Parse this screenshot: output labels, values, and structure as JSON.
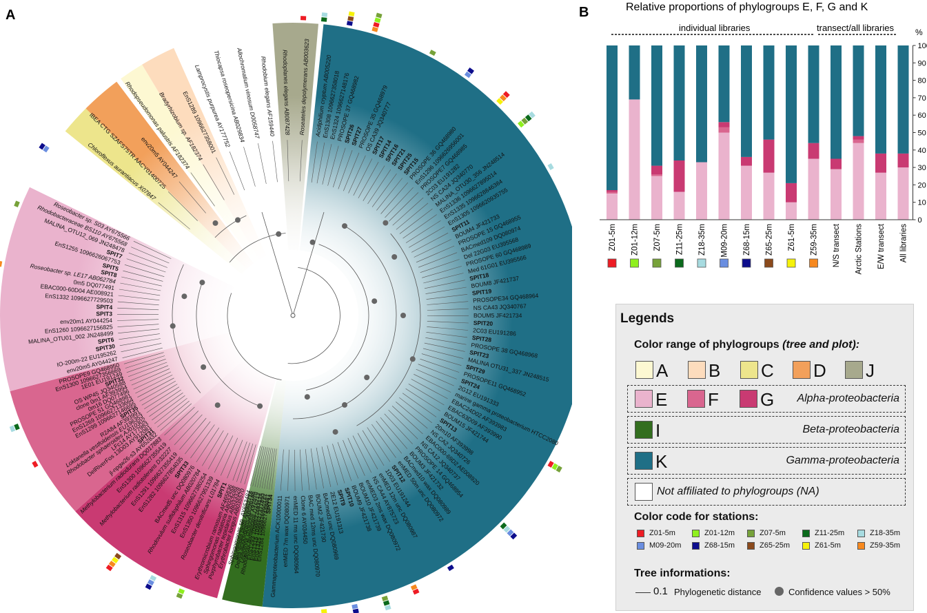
{
  "panel_labels": {
    "a": "A",
    "b": "B"
  },
  "colors": {
    "A": "#fdf8d2",
    "B": "#fddcbd",
    "C": "#ede58c",
    "D": "#f2a05b",
    "J": "#a7a98d",
    "E": "#eab3cd",
    "F": "#d9668f",
    "G": "#c93a72",
    "I": "#336e1f",
    "K": "#1f6f86",
    "NA": "#ffffff"
  },
  "tree": {
    "labels_K": [
      "Acidiphilium cryptum AB005220",
      "EnS1308 1096627358018",
      "EnS1324 1096627148176",
      "PROSOPE 37 GQ468982",
      "SPIT26",
      "SPIT27",
      "PROSOPE 35 GQ468979",
      "OS CA39 JQ340777",
      "SPIT17",
      "SPIT14",
      "SPIT16",
      "SPIT21",
      "SPIT25",
      "SPIT15",
      "PROSOPE 36 GQ468980",
      "EnS1296 1096626956001",
      "PROSOPE7 GQ468985",
      "2C03 EU191282",
      "NS CA24 JQ340770",
      "MALINA_OTU30_356 JN248514",
      "EnS1336 1096627895014",
      "EnS1335 1096628846384",
      "EnS1305 1096620935755",
      "SPIT11",
      "BOUM4 JF421733",
      "PROSOPE 15 GQ468955",
      "BACmed109 DQ080974",
      "Del 22G03 EU395568",
      "PROSOPE 60 GQ468989",
      "Med 61G01 EU395566",
      "SPIT18",
      "BOUM8 JF421737",
      "SPIT19",
      "PROSOPE34 GQ468964",
      "NS CA43 JQ340767",
      "BOUM5 JF421734",
      "SPIT20",
      "2C03 EU191286",
      "SPIT28",
      "PROSOPE 38 GQ468968",
      "SPIT23",
      "MALINA OTU31_337 JN248515",
      "SPIT29",
      "PROSOPE11 GQ468952",
      "SPIT24",
      "2G12 EU191333",
      "marine gamma proteobacterium HTCC2080",
      "EBAC24D02 AF393983",
      "EBAC63D09 AF393990",
      "BOUM15 JF421744",
      "SPIT13",
      "20m10 AF393998",
      "NS CA2 JQ340726",
      "EBAC000-69D2 AE008920",
      "NS CA12 JQ340737",
      "PROSOPE 14 GQ468954",
      "BOUM3 JF421732",
      "BACmed10 wax DQ080989",
      "enMED 50m unc DQ080972",
      "SPIT12",
      "1D03 EU191244",
      "enMED 12m unc DQ080987",
      "NS CA44 AY875723",
      "enMED3 2ms wax DQ080972",
      "BOUM10 JF421739",
      "BOUM9 JF421738",
      "SPIT10",
      "SPIT9",
      "2E12 EU191313",
      "BACmed3 unc DQ080969",
      "BOUM2 JF421730",
      "BAC med 12ms unc DQ080970",
      "Clone 6 AY034450",
      "enMED 11 ms unc DQ080964",
      "enMED 7m wax DQ080971",
      "Gammaproteobacterium ACK10000011"
    ],
    "labels_I": [
      "SPIT34",
      "EnS1284 1096627448087",
      "EnS1325 1096626960147",
      "EnS1315 1096627377890",
      "EnS1293 1096627493124",
      "Rhodoferax fermentans D16212",
      "Leptothrix cholodnii X97070",
      "Delftia acidovorans AB020186",
      "Bordetella petrii AM902716",
      "Sphingomonas sp. AY653484"
    ],
    "labels_J": [
      "Erythrobacter longus AB035570",
      "Porphyrobacter tepidarius AB033328",
      "Sphingomonas natatoria AB024288",
      "Erythromicrobium ramosum AF465836"
    ],
    "labels_G": [
      "SPIT1",
      "Roseobacter denitrificans L01784",
      "EnS1350 1096627951339",
      "EnS1315 1096627380254",
      "Rhodovulum sulfidophilum AB020784",
      "BACmed5 unc DQ080976",
      "SPIT33",
      "EnS1282 1096627854035",
      "EnS1291 1096627355419",
      "Methylobacterium radiotolerans D32227",
      "EnS1300 1096627355419",
      "Methylobacterium radiodurans DQ017883"
    ],
    "labels_F": [
      "jl-npgw26-s3 AY652832",
      "SPIT31",
      "DelRiverFos 13D03 AY912081",
      "LFc14 AY177983",
      "Rhodobacter sphaeroides AJ010302",
      "Loktanella vestfoldensis EU196353",
      "R2A84 AF393991",
      "SPIT35",
      "EnS1299 1096627146695",
      "EnS1269 1096627133664",
      "PROSOPE 51 GQ468981",
      "0m16 DQ077496",
      "clone 0m1 AF393994",
      "OS WP45 JQ340588",
      "SPIT32",
      "1E01 EU191249",
      "EnS1300 1096627356669",
      "PROSOPE9 GQ468950"
    ],
    "labels_E": [
      "env20m5 AY044247",
      "IO-200m-22 EU195262",
      "SPIT30",
      "SPIT6",
      "MALINA_OTU01_002 JN248499",
      "EnS1260 1096627156825",
      "env20m1 AY044254",
      "SPIT3",
      "SPIT4",
      "EnS1332 1096627729503",
      "EBAC000-60D04 AE008921",
      "0m5 DQ077491",
      "Roseobacter sp. LE17 AB062784",
      "SPIT8",
      "SPIT5",
      "EnS1255 1096626067753",
      "SPIT7",
      "MALINA_OTU12_069 JN248478",
      "Rhodobacteraceae BS110 AY675568",
      "Roseobacter sp. S03 AY675566"
    ],
    "labels_ABCD": [
      "Chloroflexus aurantiacus X07847",
      "IBEA CTG SZAFS75TR AACY01400725",
      "env20m5 AY044247",
      "Rhodopseudomonas palustris AF182374",
      "Bradyrhizobium sp. AF182374",
      "EnS1289 1096627358001",
      "Lamprocystis purpurea AY177752",
      "Thiocapsa roseopersicina AB029834",
      "Allochromatium vinosum D0058747",
      "Rhodobium elegans AF159440",
      "Rhodoplanes elegans AB087428",
      "Roseateles depolymerans AB003623"
    ],
    "scale_value": "0.1"
  },
  "chart_data": {
    "type": "bar",
    "title": "Relative proportions of phylogroups E, F, G and K",
    "ylabel": "%",
    "ylim": [
      0,
      100
    ],
    "yticks": [
      "0",
      "10",
      "20",
      "30",
      "40",
      "50",
      "60",
      "70",
      "80",
      "90",
      "100"
    ],
    "categories": [
      "Z01-5m",
      "Z01-12m",
      "Z07-5m",
      "Z11-25m",
      "Z18-35m",
      "M09-20m",
      "Z68-15m",
      "Z65-25m",
      "Z61-5m",
      "Z59-35m",
      "N/S transect",
      "Arctic Stations",
      "E/W transect",
      "All libraries"
    ],
    "category_colors": [
      "#ee1c24",
      "#8ff01e",
      "#77a23a",
      "#0b6a1c",
      "#a7dbe0",
      "#6a8ee0",
      "#0d0d8c",
      "#8b4a1c",
      "#f6f20a",
      "#f7891f",
      "",
      "",
      "",
      ""
    ],
    "series": [
      {
        "name": "E",
        "color": "#eab3cd",
        "values": [
          15,
          69,
          25,
          16,
          33,
          50,
          31,
          27,
          10,
          35,
          29,
          44,
          27,
          30
        ]
      },
      {
        "name": "F",
        "color": "#d9668f",
        "values": [
          1,
          0,
          1,
          0,
          0,
          3,
          0,
          0,
          0,
          0,
          0,
          2,
          0,
          0
        ]
      },
      {
        "name": "G",
        "color": "#c93a72",
        "values": [
          1,
          0,
          5,
          18,
          0,
          3,
          5,
          19,
          11,
          9,
          6,
          2,
          11,
          8
        ]
      },
      {
        "name": "K",
        "color": "#1f6f86",
        "values": [
          83,
          31,
          69,
          66,
          67,
          44,
          64,
          54,
          79,
          56,
          65,
          52,
          62,
          62
        ]
      }
    ],
    "group_headers": {
      "individual": "individual  libraries",
      "transect": "transect/all libraries"
    }
  },
  "legend": {
    "title": "Legends",
    "color_range_title": "Color range of phylogroups",
    "color_range_note": "(tree and plot):",
    "row1": [
      {
        "letter": "A",
        "color": "#fdf8d2"
      },
      {
        "letter": "B",
        "color": "#fddcbd"
      },
      {
        "letter": "C",
        "color": "#ede58c"
      },
      {
        "letter": "D",
        "color": "#f2a05b"
      },
      {
        "letter": "J",
        "color": "#a7a98d"
      }
    ],
    "row_alpha": [
      {
        "letter": "E",
        "color": "#eab3cd"
      },
      {
        "letter": "F",
        "color": "#d9668f"
      },
      {
        "letter": "G",
        "color": "#c93a72"
      }
    ],
    "alpha_name": "Alpha-proteobacteria",
    "beta_letter": "I",
    "beta_name": "Beta-proteobacteria",
    "gamma_letter": "K",
    "gamma_name": "Gamma-proteobacteria",
    "na_name": "Not affiliated to phylogroups (NA)",
    "stations_title": "Color code for stations:",
    "stations": [
      {
        "name": "Z01-5m",
        "color": "#ee1c24"
      },
      {
        "name": "Z01-12m",
        "color": "#8ff01e"
      },
      {
        "name": "Z07-5m",
        "color": "#77a23a"
      },
      {
        "name": "Z11-25m",
        "color": "#0b6a1c"
      },
      {
        "name": "Z18-35m",
        "color": "#a7dbe0"
      },
      {
        "name": "M09-20m",
        "color": "#6a8ee0"
      },
      {
        "name": "Z68-15m",
        "color": "#0d0d8c"
      },
      {
        "name": "Z65-25m",
        "color": "#8b4a1c"
      },
      {
        "name": "Z61-5m",
        "color": "#f6f20a"
      },
      {
        "name": "Z59-35m",
        "color": "#f7891f"
      }
    ],
    "tree_title": "Tree informations:",
    "scale_value": "0.1",
    "scale_label": "Phylogenetic distance",
    "confidence_label": "Confidence values > 50%"
  }
}
